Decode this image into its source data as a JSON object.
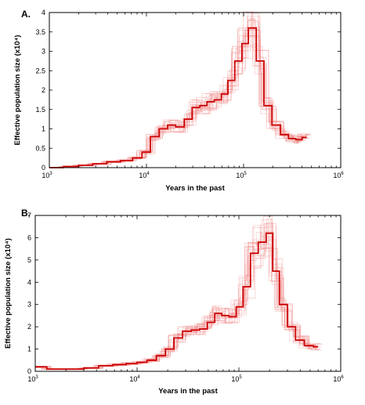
{
  "chart_data": [
    {
      "type": "line",
      "panel_label": "A.",
      "title": "",
      "xlabel": "Years in the past",
      "ylabel": "Effective population size (x10⁴)",
      "xscale": "log",
      "xlim": [
        1000,
        1000000
      ],
      "ylim": [
        0,
        4
      ],
      "x_ticks": [
        1000,
        10000,
        100000,
        1000000
      ],
      "x_tick_labels": [
        {
          "base": "10",
          "exp": "3"
        },
        {
          "base": "10",
          "exp": "4"
        },
        {
          "base": "10",
          "exp": "5"
        },
        {
          "base": "10",
          "exp": "6"
        }
      ],
      "y_ticks": [
        0,
        0.5,
        1,
        1.5,
        2,
        2.5,
        3,
        3.5,
        4
      ],
      "y_tick_labels": [
        "0",
        "0.5",
        "1",
        "1.5",
        "2",
        "2.5",
        "3",
        "3.5",
        "4"
      ],
      "grid": false,
      "legend": "none",
      "colors": {
        "main": "#cc0000",
        "bootstrap": "#f08a8a"
      },
      "series": [
        {
          "role": "main",
          "x": [
            1000,
            1400,
            2000,
            2800,
            3900,
            5400,
            7200,
            9000,
            11000,
            13500,
            16500,
            20000,
            24500,
            29500,
            35500,
            42000,
            50000,
            59000,
            69000,
            81000,
            96000,
            112000,
            135000,
            162000,
            196000,
            240000,
            290000,
            345000,
            400000
          ],
          "y": [
            0.0,
            0.03,
            0.06,
            0.1,
            0.15,
            0.18,
            0.25,
            0.4,
            0.8,
            1.0,
            1.1,
            1.05,
            1.25,
            1.55,
            1.6,
            1.7,
            1.75,
            1.9,
            2.25,
            2.75,
            3.2,
            3.6,
            2.75,
            1.6,
            1.1,
            0.85,
            0.75,
            0.72,
            0.78
          ],
          "bootstrap_count": 20
        }
      ]
    },
    {
      "type": "line",
      "panel_label": "B.",
      "title": "",
      "xlabel": "Years in the past",
      "ylabel": "Effective population size (x10⁴)",
      "xscale": "log",
      "xlim": [
        1000,
        1000000
      ],
      "ylim": [
        0,
        7
      ],
      "x_ticks": [
        1000,
        10000,
        100000,
        1000000
      ],
      "x_tick_labels": [
        {
          "base": "10",
          "exp": "3"
        },
        {
          "base": "10",
          "exp": "4"
        },
        {
          "base": "10",
          "exp": "5"
        },
        {
          "base": "10",
          "exp": "6"
        }
      ],
      "y_ticks": [
        0,
        1,
        2,
        3,
        4,
        5,
        6,
        7
      ],
      "y_tick_labels": [
        "0",
        "1",
        "2",
        "3",
        "4",
        "5",
        "6",
        "7"
      ],
      "grid": false,
      "legend": "none",
      "colors": {
        "main": "#cc0000",
        "bootstrap": "#f08a8a"
      },
      "series": [
        {
          "role": "main",
          "x": [
            1000,
            1300,
            2000,
            3000,
            4200,
            5800,
            7800,
            10000,
            12500,
            15500,
            19000,
            23000,
            28000,
            34000,
            41000,
            49000,
            58000,
            68000,
            80000,
            94000,
            110000,
            130000,
            155000,
            185000,
            215000,
            250000,
            300000,
            360000,
            440000,
            540000
          ],
          "y": [
            0.2,
            0.1,
            0.1,
            0.15,
            0.25,
            0.3,
            0.35,
            0.4,
            0.5,
            0.7,
            1.0,
            1.5,
            1.8,
            1.85,
            1.9,
            2.2,
            2.6,
            2.5,
            2.45,
            2.9,
            3.8,
            5.3,
            5.8,
            6.2,
            4.5,
            3.0,
            2.0,
            1.4,
            1.15,
            1.1
          ]
        }
      ],
      "bootstrap_count": 20
    }
  ]
}
